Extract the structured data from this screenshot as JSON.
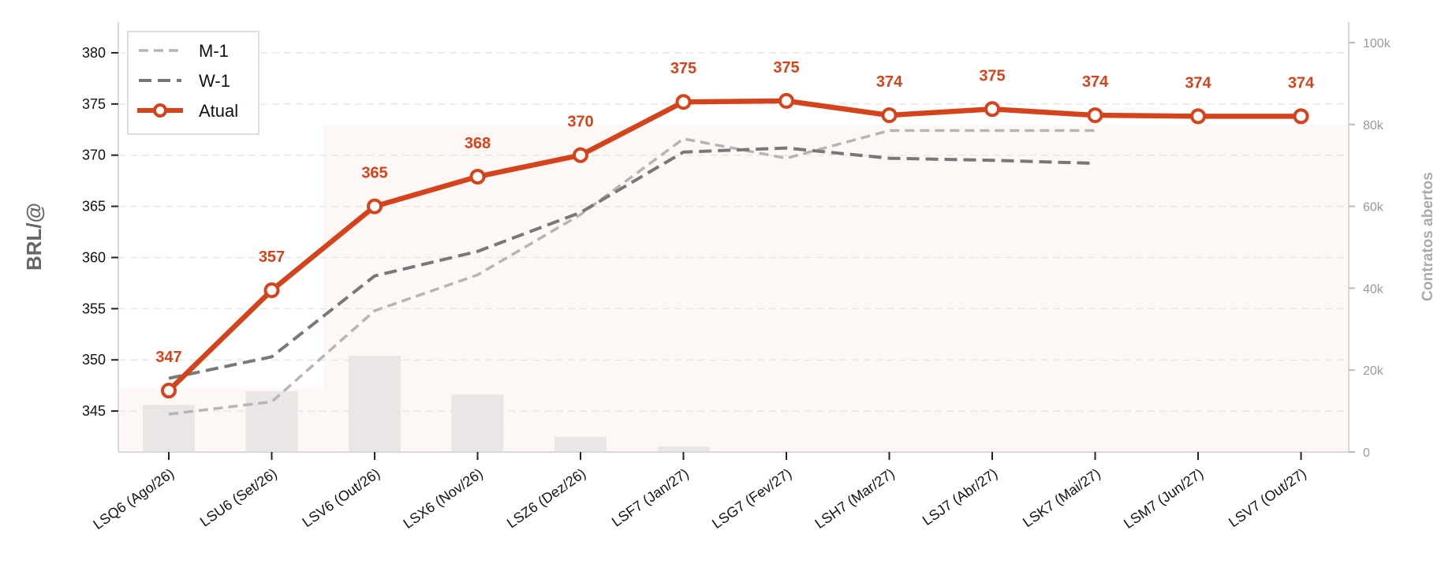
{
  "chart_data": {
    "type": "line",
    "categories": [
      "LSQ6 (Ago/26)",
      "LSU6 (Set/26)",
      "LSV6 (Out/26)",
      "LSX6 (Nov/26)",
      "LSZ6 (Dez/26)",
      "LSF7 (Jan/27)",
      "LSG7 (Fev/27)",
      "LSH7 (Mar/27)",
      "LSJ7 (Abr/27)",
      "LSK7 (Mai/27)",
      "LSM7 (Jun/27)",
      "LSV7 (Out/27)"
    ],
    "ylabel": "BRL/@",
    "y2label": "Contratos abertos",
    "ylim": [
      341,
      383
    ],
    "y2lim": [
      0,
      105000
    ],
    "yticks": [
      345,
      350,
      355,
      360,
      365,
      370,
      375,
      380
    ],
    "y2ticks": [
      0,
      20000,
      40000,
      60000,
      80000,
      100000
    ],
    "y2tick_labels": [
      "0",
      "20k",
      "40k",
      "60k",
      "80k",
      "100k"
    ],
    "grid": "horizontal dashed",
    "legend_position": "top-left",
    "series": [
      {
        "name": "M-1",
        "style": "dashed",
        "color": "#b5b5b5",
        "values": [
          344.7,
          345.9,
          354.8,
          358.3,
          364.2,
          371.6,
          369.7,
          372.4,
          372.4,
          372.4,
          null,
          null
        ]
      },
      {
        "name": "W-1",
        "style": "dashed",
        "color": "#787878",
        "values": [
          348.2,
          350.3,
          358.2,
          360.6,
          364.4,
          370.3,
          370.7,
          369.7,
          369.5,
          369.2,
          null,
          null
        ]
      },
      {
        "name": "Atual",
        "style": "solid-markers",
        "color": "#d4441c",
        "values": [
          347,
          356.8,
          365,
          367.9,
          370,
          375.2,
          375.3,
          373.9,
          374.5,
          373.9,
          373.8,
          373.8
        ],
        "labels": [
          "347",
          "357",
          "365",
          "368",
          "370",
          "375",
          "375",
          "374",
          "375",
          "374",
          "374",
          "374"
        ]
      }
    ],
    "open_interest": {
      "color": "#e9e6e5",
      "values": [
        11500,
        14800,
        23500,
        14000,
        3700,
        1300,
        0,
        0,
        0,
        0,
        0,
        0
      ]
    },
    "background_area": {
      "color": "#fdf8f6",
      "values": [
        15500,
        15500,
        80000,
        80000,
        80000,
        80000,
        80000,
        80000,
        80000,
        80000,
        80000,
        80000
      ]
    }
  }
}
